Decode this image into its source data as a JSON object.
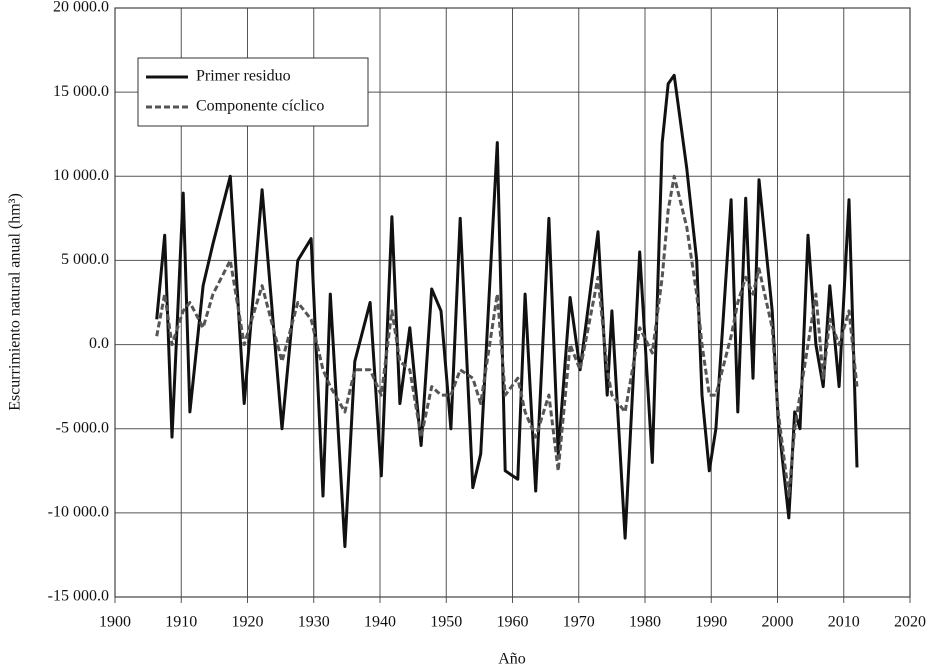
{
  "chart_data": {
    "type": "line",
    "x_label": "Año",
    "y_label": "Escurrimiento natural anual (hm³)",
    "x": [
      1906.3,
      1907.5,
      1908.6,
      1910.3,
      1911.3,
      1913.3,
      1914.8,
      1917.4,
      1919.5,
      1922.2,
      1925.2,
      1927.6,
      1929.6,
      1931.4,
      1932.5,
      1934.7,
      1936.2,
      1938.5,
      1940.2,
      1941.8,
      1943,
      1944.5,
      1946.2,
      1947.8,
      1949.2,
      1950.7,
      1952.1,
      1954,
      1955.2,
      1957.7,
      1958.9,
      1960.8,
      1961.9,
      1963.5,
      1965.5,
      1966.9,
      1968.7,
      1970.2,
      1972.9,
      1974.3,
      1975,
      1977,
      1979.2,
      1981.1,
      1982.6,
      1983.5,
      1984.4,
      1986.3,
      1987.8,
      1988.6,
      1989.7,
      1990.7,
      1993,
      1994,
      1995.2,
      1996.3,
      1997.2,
      1999.2,
      2000.1,
      2001.7,
      2002.6,
      2003.4,
      2004.6,
      2005.8,
      2006.9,
      2007.9,
      2009.3,
      2010.8,
      2012
    ],
    "series": [
      {
        "name": "Primer residuo",
        "color": "#111111",
        "style": "solid",
        "values": [
          1500,
          6500,
          -5500,
          9000,
          -4000,
          3500,
          6000,
          10000,
          -3500,
          9200,
          -5000,
          5000,
          6300,
          -9000,
          3000,
          -12000,
          -1000,
          2500,
          -7800,
          7600,
          -3500,
          1000,
          -6000,
          3300,
          2000,
          -5000,
          7500,
          -8500,
          -6500,
          12000,
          -7500,
          -8000,
          3000,
          -8700,
          7500,
          -6500,
          2800,
          -1500,
          6700,
          -3000,
          2000,
          -11500,
          5500,
          -7000,
          12000,
          15500,
          16000,
          10500,
          5000,
          -3000,
          -7500,
          -5000,
          8600,
          -4000,
          8700,
          -2000,
          9800,
          2000,
          -4500,
          -10300,
          -4000,
          -5000,
          6500,
          0,
          -2500,
          3500,
          -2500,
          8600,
          -7300
        ]
      },
      {
        "name": "Componente cíclico",
        "color": "#555555",
        "style": "dashed",
        "values": [
          500,
          3000,
          0,
          2000,
          2500,
          1000,
          3000,
          5000,
          0,
          3500,
          -1000,
          2500,
          1500,
          -1500,
          -2500,
          -4000,
          -1500,
          -1500,
          -3000,
          2000,
          -1000,
          -1500,
          -5500,
          -2500,
          -3000,
          -3000,
          -1500,
          -2000,
          -3500,
          3000,
          -3000,
          -2000,
          -4000,
          -5500,
          -3000,
          -7500,
          0,
          -1500,
          4000,
          -1500,
          -3000,
          -4000,
          1000,
          -500,
          4000,
          8000,
          10000,
          7000,
          3000,
          0,
          -3000,
          -3000,
          500,
          2500,
          4000,
          3000,
          4500,
          1000,
          -4000,
          -9000,
          -5000,
          -3000,
          0,
          3000,
          -2000,
          1500,
          0,
          2000,
          -2500
        ]
      }
    ],
    "xlim": [
      1900,
      2020
    ],
    "xticks": [
      1900,
      1910,
      1920,
      1930,
      1940,
      1950,
      1960,
      1970,
      1980,
      1990,
      2000,
      2010,
      2020
    ],
    "ylim": [
      -15000,
      20000
    ],
    "yticks": [
      {
        "value": -15000,
        "label": "-15 000.0"
      },
      {
        "value": -10000,
        "label": "-10 000.0"
      },
      {
        "value": -5000,
        "label": "-5 000.0"
      },
      {
        "value": 0,
        "label": "0.0"
      },
      {
        "value": 5000,
        "label": "5 000.0"
      },
      {
        "value": 10000,
        "label": "10 000.0"
      },
      {
        "value": 15000,
        "label": "15 000.0"
      },
      {
        "value": 20000,
        "label": "20 000.0"
      }
    ],
    "grid": true,
    "legend": "upper left"
  }
}
